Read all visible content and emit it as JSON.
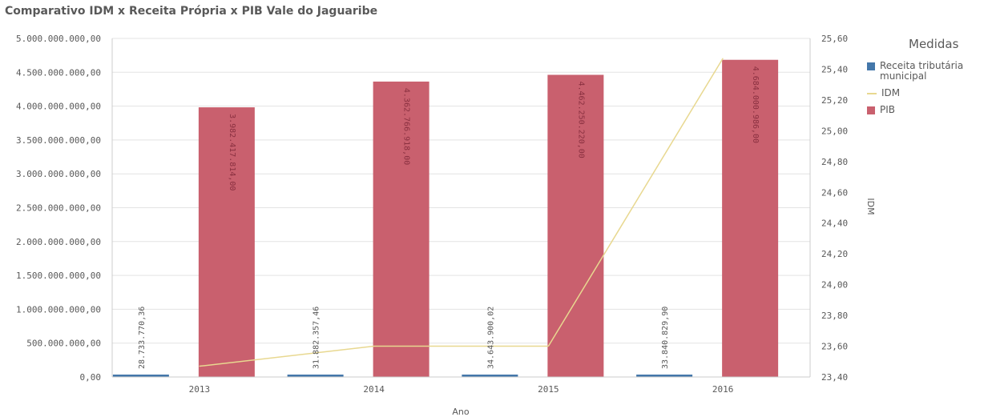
{
  "chart_data": {
    "type": "bar",
    "title": "Comparativo IDM x Receita Própria x PIB Vale do Jaguaribe",
    "xlabel": "Ano",
    "ylabel": "",
    "y2label": "IDM",
    "categories": [
      "2013",
      "2014",
      "2015",
      "2016"
    ],
    "ylim": [
      0,
      5000000000
    ],
    "y2lim": [
      23.4,
      25.6
    ],
    "y_ticks": [
      "0,00",
      "500.000.000,00",
      "1.000.000.000,00",
      "1.500.000.000,00",
      "2.000.000.000,00",
      "2.500.000.000,00",
      "3.000.000.000,00",
      "3.500.000.000,00",
      "4.000.000.000,00",
      "4.500.000.000,00",
      "5.000.000.000,00"
    ],
    "y2_ticks": [
      "23,40",
      "23,60",
      "23,80",
      "24,00",
      "24,20",
      "24,40",
      "24,60",
      "24,80",
      "25,00",
      "25,20",
      "25,40",
      "25,60"
    ],
    "grid": true,
    "legend_title": "Medidas",
    "legend_position": "right",
    "series": [
      {
        "name": "Receita tributária municipal",
        "kind": "bar",
        "axis": "left",
        "color": "#4477aa",
        "values": [
          28733770.36,
          31882357.46,
          34643900.02,
          33840829.9
        ],
        "labels": [
          "28.733.770,36",
          "31.882.357,46",
          "34.643.900,02",
          "33.840.829,90"
        ]
      },
      {
        "name": "IDM",
        "kind": "line",
        "axis": "right",
        "color": "#e8d890",
        "values": [
          23.47,
          23.6,
          23.6,
          25.47
        ]
      },
      {
        "name": "PIB",
        "kind": "bar",
        "axis": "left",
        "color": "#c9606e",
        "values": [
          3982417814.0,
          4362766918.0,
          4462250220.0,
          4684000986.0
        ],
        "labels": [
          "3.982.417.814,00",
          "4.362.766.918,00",
          "4.462.250.220,00",
          "4.684.000.986,00"
        ]
      }
    ]
  }
}
